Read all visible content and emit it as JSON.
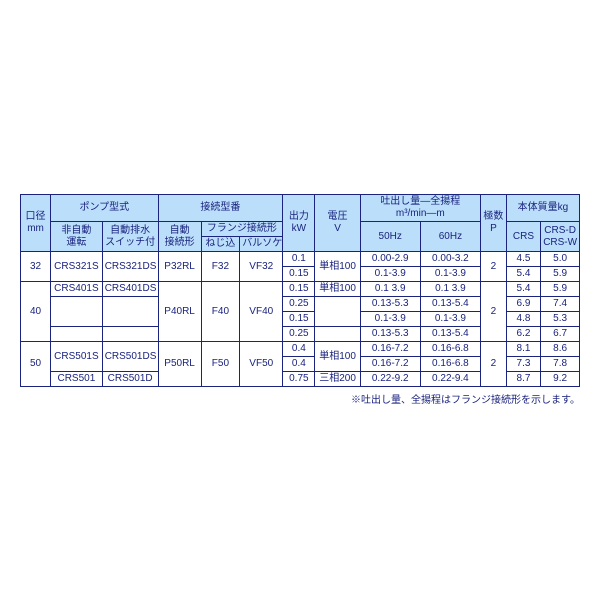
{
  "headers": {
    "bore": "口径\nmm",
    "pump_model": "ポンプ型式",
    "non_auto": "非自動\n運転",
    "auto_drain": "自動排水\nスイッチ付",
    "conn_model": "接続型番",
    "auto_conn": "自動\n接続形",
    "flange_conn": "フランジ接続形",
    "screw": "ねじ込",
    "valve": "バルソケ",
    "output": "出力\nkW",
    "voltage": "電圧\nV",
    "discharge": "吐出し量―全揚程\nm³/min―m",
    "hz50": "50Hz",
    "hz60": "60Hz",
    "poles": "極数\nP",
    "mass": "本体質量kg",
    "crs": "CRS",
    "crsd": "CRS-D\nCRS-W"
  },
  "colw": {
    "bore": 28,
    "nonauto": 48,
    "autodrain": 52,
    "autoconn": 40,
    "screw": 36,
    "valve": 40,
    "output": 30,
    "voltage": 42,
    "hz50": 56,
    "hz60": 56,
    "poles": 24,
    "crs": 32,
    "crsd": 36
  },
  "rows": [
    {
      "bore": "32",
      "na": "CRS321S",
      "ad": "CRS321DS",
      "ac": "P32RL",
      "scr": "F32",
      "val": "VF32",
      "out": "0.1",
      "v": "単相100",
      "d50": "0.00-2.9",
      "d60": "0.00-3.2",
      "p": "2",
      "m1": "4.5",
      "m2": "5.0"
    },
    {
      "bore": "",
      "na": "",
      "ad": "",
      "ac": "",
      "scr": "",
      "val": "",
      "out": "0.15",
      "v": "",
      "d50": "0.1-3.9",
      "d60": "0.1-3.9",
      "p": "",
      "m1": "5.4",
      "m2": "5.9"
    },
    {
      "bore": "40",
      "na": "CRS401S",
      "ad": "CRS401DS",
      "ac": "P40RL",
      "scr": "F40",
      "val": "VF40",
      "out": "0.15",
      "v": "単相100",
      "d50": "0.1 3.9",
      "d60": "0.1 3.9",
      "p": "2",
      "m1": "5.4",
      "m2": "5.9"
    },
    {
      "bore": "",
      "na": "",
      "ad": "",
      "ac": "",
      "scr": "",
      "val": "",
      "out": "0.25",
      "v": "",
      "d50": "0.13-5.3",
      "d60": "0.13-5.4",
      "p": "",
      "m1": "6.9",
      "m2": "7.4"
    },
    {
      "bore": "",
      "na": "CRS401T",
      "ad": "CRS401DT",
      "ac": "",
      "scr": "",
      "val": "",
      "out": "0.15",
      "v": "三相200",
      "d50": "0.1-3.9",
      "d60": "0.1-3.9",
      "p": "",
      "m1": "4.8",
      "m2": "5.3"
    },
    {
      "bore": "",
      "na": "",
      "ad": "",
      "ac": "",
      "scr": "",
      "val": "",
      "out": "0.25",
      "v": "",
      "d50": "0.13-5.3",
      "d60": "0.13-5.4",
      "p": "",
      "m1": "6.2",
      "m2": "6.7"
    },
    {
      "bore": "50",
      "na": "CRS501S",
      "ad": "CRS501DS",
      "ac": "P50RL",
      "scr": "F50",
      "val": "VF50",
      "out": "0.4",
      "v": "単相100",
      "d50": "0.16-7.2",
      "d60": "0.16-6.8",
      "p": "2",
      "m1": "8.1",
      "m2": "8.6"
    },
    {
      "bore": "",
      "na": "CRS501T",
      "ad": "CRS501DT",
      "ac": "",
      "scr": "",
      "val": "",
      "out": "0.4",
      "v": "三相200",
      "d50": "0.16-7.2",
      "d60": "0.16-6.8",
      "p": "",
      "m1": "7.3",
      "m2": "7.8"
    },
    {
      "bore": "",
      "na": "CRS501",
      "ad": "CRS501D",
      "ac": "",
      "scr": "",
      "val": "",
      "out": "0.75",
      "v": "三相200",
      "d50": "0.22-9.2",
      "d60": "0.22-9.4",
      "p": "",
      "m1": "8.7",
      "m2": "9.2"
    }
  ],
  "note": "※吐出し量、全揚程はフランジ接続形を示します。",
  "spans": {
    "bore": [
      2,
      4,
      3
    ],
    "ac": [
      2,
      4,
      3
    ],
    "scr": [
      2,
      4,
      3
    ],
    "val": [
      2,
      4,
      3
    ],
    "p": [
      2,
      4,
      3
    ],
    "na": [
      2,
      1,
      2,
      1,
      2,
      1,
      1,
      1,
      1
    ],
    "ad": [
      2,
      1,
      2,
      1,
      2,
      1,
      1,
      1,
      1
    ],
    "v": [
      2,
      1,
      2,
      1,
      2,
      1,
      1,
      1,
      1
    ]
  }
}
